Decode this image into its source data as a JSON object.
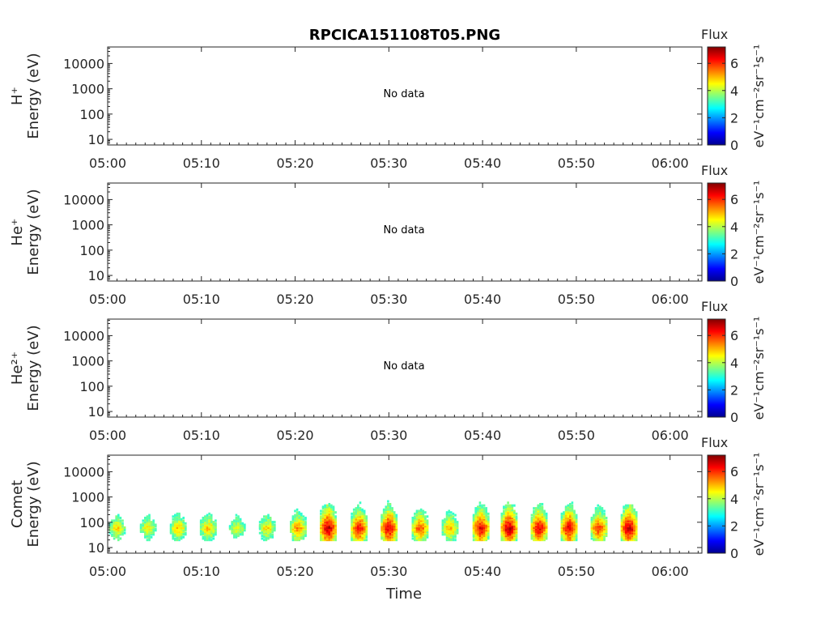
{
  "title": "RPCICA151108T05.PNG",
  "xlabel": "Time",
  "nodata_text": "No data",
  "colorbar": {
    "title": "Flux",
    "unit": "eV⁻¹cm⁻²sr⁻¹s⁻¹",
    "ticks": [
      "0",
      "2",
      "4",
      "6"
    ],
    "range": [
      0,
      7.2
    ]
  },
  "x_ticks": [
    "05:00",
    "05:10",
    "05:20",
    "05:30",
    "05:40",
    "05:50",
    "06:00"
  ],
  "chart_data": [
    {
      "type": "heatmap",
      "species": "H⁺",
      "ylabel": "Energy (eV)",
      "y_ticks": [
        "10",
        "100",
        "1000",
        "10000"
      ],
      "y_scale": "log",
      "has_data": false,
      "xlim": [
        "05:00",
        "06:03"
      ]
    },
    {
      "type": "heatmap",
      "species": "He⁺",
      "ylabel": "Energy (eV)",
      "y_ticks": [
        "10",
        "100",
        "1000",
        "10000"
      ],
      "y_scale": "log",
      "has_data": false,
      "xlim": [
        "05:00",
        "06:03"
      ]
    },
    {
      "type": "heatmap",
      "species": "He²⁺",
      "ylabel": "Energy (eV)",
      "y_ticks": [
        "10",
        "100",
        "1000",
        "10000"
      ],
      "y_scale": "log",
      "has_data": false,
      "xlim": [
        "05:00",
        "06:03"
      ]
    },
    {
      "type": "heatmap",
      "species": "Comet",
      "ylabel": "Energy (eV)",
      "y_ticks": [
        "10",
        "100",
        "1000",
        "10000"
      ],
      "y_scale": "log",
      "has_data": true,
      "xlim": [
        "05:00",
        "06:03"
      ],
      "bursts": [
        {
          "t_min": 1.0,
          "flux_peak": 4.8
        },
        {
          "t_min": 4.3,
          "flux_peak": 4.6
        },
        {
          "t_min": 7.5,
          "flux_peak": 5.0
        },
        {
          "t_min": 10.7,
          "flux_peak": 5.0
        },
        {
          "t_min": 13.8,
          "flux_peak": 4.5
        },
        {
          "t_min": 17.0,
          "flux_peak": 4.8
        },
        {
          "t_min": 20.3,
          "flux_peak": 5.4
        },
        {
          "t_min": 23.5,
          "flux_peak": 6.8
        },
        {
          "t_min": 26.8,
          "flux_peak": 6.3
        },
        {
          "t_min": 30.0,
          "flux_peak": 6.6
        },
        {
          "t_min": 33.3,
          "flux_peak": 5.8
        },
        {
          "t_min": 36.5,
          "flux_peak": 5.2
        },
        {
          "t_min": 39.8,
          "flux_peak": 6.5
        },
        {
          "t_min": 42.8,
          "flux_peak": 6.8
        },
        {
          "t_min": 46.0,
          "flux_peak": 6.5
        },
        {
          "t_min": 49.2,
          "flux_peak": 6.6
        },
        {
          "t_min": 52.4,
          "flux_peak": 6.0
        },
        {
          "t_min": 55.6,
          "flux_peak": 6.8
        }
      ],
      "burst_energy_range_ev": [
        20,
        3000
      ],
      "peak_energy_ev": 60
    }
  ]
}
